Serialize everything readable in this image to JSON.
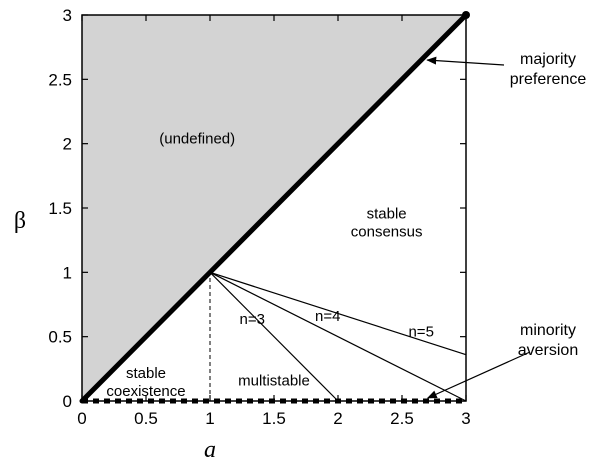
{
  "chart_data": {
    "type": "line",
    "title": "",
    "xlabel": "a",
    "ylabel": "β",
    "xlim": [
      0,
      3
    ],
    "ylim": [
      0,
      3
    ],
    "grid": false,
    "x_ticks": [
      0,
      0.5,
      1,
      1.5,
      2,
      2.5,
      3
    ],
    "y_ticks": [
      0,
      0.5,
      1,
      1.5,
      2,
      2.5,
      3
    ],
    "x_tick_labels": [
      "0",
      "0.5",
      "1",
      "1.5",
      "2",
      "2.5",
      "3"
    ],
    "y_tick_labels": [
      "0",
      "0.5",
      "1",
      "1.5",
      "2",
      "2.5",
      "3"
    ],
    "colors": {
      "undefined_region": "#d3d3d3",
      "lines": "#000000"
    },
    "regions": [
      {
        "label": "(undefined)",
        "polygon": [
          [
            0,
            0
          ],
          [
            3,
            3
          ],
          [
            0,
            3
          ]
        ]
      }
    ],
    "series": [
      {
        "label": "",
        "role": "boundary",
        "x": [
          0,
          3
        ],
        "y": [
          0,
          3
        ]
      },
      {
        "label": "n=3",
        "role": "branch",
        "x": [
          1,
          2
        ],
        "y": [
          1,
          0
        ]
      },
      {
        "label": "n=4",
        "role": "branch",
        "x": [
          1,
          3
        ],
        "y": [
          1,
          0
        ]
      },
      {
        "label": "n=5",
        "role": "branch",
        "x": [
          1,
          3
        ],
        "y": [
          1,
          0.36
        ]
      },
      {
        "label": "",
        "role": "divider",
        "x": [
          1,
          1
        ],
        "y": [
          0,
          1
        ]
      },
      {
        "label": "",
        "role": "baseline",
        "x": [
          0,
          3
        ],
        "y": [
          0,
          0
        ]
      }
    ],
    "region_labels": [
      {
        "text": "(undefined)",
        "x": 0.9,
        "y": 2.0
      },
      {
        "lines": [
          "stable",
          "consensus"
        ],
        "x": 2.38,
        "y": 1.42
      },
      {
        "lines": [
          "stable",
          "coexistence"
        ],
        "x": 0.5,
        "y": 0.18
      },
      {
        "text": "multistable",
        "x": 1.5,
        "y": 0.12
      }
    ],
    "branch_labels": [
      {
        "text": "n=3",
        "x": 1.33,
        "y": 0.6
      },
      {
        "text": "n=4",
        "x": 1.92,
        "y": 0.62
      },
      {
        "text": "n=5",
        "x": 2.65,
        "y": 0.5
      }
    ],
    "annotations": [
      {
        "lines": [
          "majority",
          "preference"
        ],
        "target": [
          2.65,
          2.65
        ]
      },
      {
        "lines": [
          "minority",
          "aversion"
        ],
        "target": [
          2.67,
          0.0
        ]
      }
    ]
  }
}
